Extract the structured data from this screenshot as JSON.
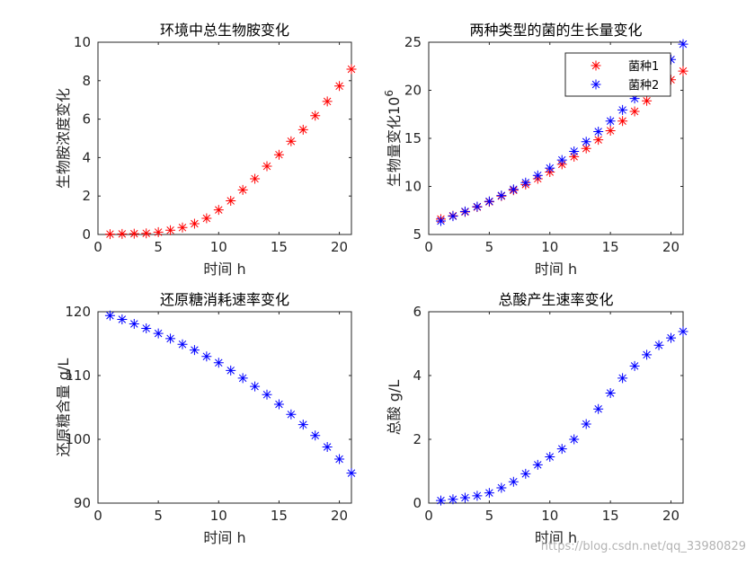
{
  "watermark": "https://blog.csdn.net/qq_33980829",
  "chart_data": [
    {
      "type": "scatter",
      "title": "环境中总生物胺变化",
      "xlabel": "时间 h",
      "ylabel": "生物胺浓度变化",
      "xlim": [
        0,
        21
      ],
      "ylim": [
        0,
        10
      ],
      "xticks": [
        0,
        5,
        10,
        15,
        20
      ],
      "yticks": [
        0,
        2,
        4,
        6,
        8,
        10
      ],
      "series": [
        {
          "name": "生物胺",
          "color": "#ff0000",
          "marker": "*",
          "x": [
            1,
            2,
            3,
            4,
            5,
            6,
            7,
            8,
            9,
            10,
            11,
            12,
            13,
            14,
            15,
            16,
            17,
            18,
            19,
            20,
            21
          ],
          "values": [
            0.02,
            0.03,
            0.04,
            0.06,
            0.12,
            0.22,
            0.36,
            0.56,
            0.84,
            1.28,
            1.75,
            2.32,
            2.9,
            3.55,
            4.15,
            4.85,
            5.45,
            6.18,
            6.92,
            7.72,
            8.6
          ]
        }
      ]
    },
    {
      "type": "scatter",
      "title": "两种类型的菌的生长量变化",
      "xlabel": "时间 h",
      "ylabel": "生物量变化10",
      "ylabel_exponent": "6",
      "xlim": [
        0,
        21
      ],
      "ylim": [
        5,
        25
      ],
      "xticks": [
        0,
        5,
        10,
        15,
        20
      ],
      "yticks": [
        5,
        10,
        15,
        20,
        25
      ],
      "legend": "top-right",
      "series": [
        {
          "name": "菌种1",
          "color": "#ff0000",
          "marker": "*",
          "x": [
            1,
            2,
            3,
            4,
            5,
            6,
            7,
            8,
            9,
            10,
            11,
            12,
            13,
            14,
            15,
            16,
            17,
            18,
            19,
            20,
            21
          ],
          "values": [
            6.6,
            6.95,
            7.35,
            7.85,
            8.4,
            9.0,
            9.6,
            10.2,
            10.8,
            11.5,
            12.3,
            13.1,
            13.95,
            14.85,
            15.8,
            16.8,
            17.8,
            18.9,
            20.0,
            21.1,
            22.0
          ]
        },
        {
          "name": "菌种2",
          "color": "#0000ff",
          "marker": "*",
          "x": [
            1,
            2,
            3,
            4,
            5,
            6,
            7,
            8,
            9,
            10,
            11,
            12,
            13,
            14,
            15,
            16,
            17,
            18,
            19,
            20,
            21
          ],
          "values": [
            6.4,
            6.9,
            7.4,
            7.9,
            8.45,
            9.05,
            9.7,
            10.4,
            11.15,
            11.9,
            12.75,
            13.65,
            14.65,
            15.7,
            16.8,
            17.95,
            19.15,
            20.4,
            21.7,
            23.2,
            24.8
          ]
        }
      ]
    },
    {
      "type": "scatter",
      "title": "还原糖消耗速率变化",
      "xlabel": "时间 h",
      "ylabel": "还原糖含量 g/L",
      "xlim": [
        0,
        21
      ],
      "ylim": [
        90,
        120
      ],
      "xticks": [
        0,
        5,
        10,
        15,
        20
      ],
      "yticks": [
        90,
        100,
        110,
        120
      ],
      "series": [
        {
          "name": "还原糖",
          "color": "#0000ff",
          "marker": "*",
          "x": [
            1,
            2,
            3,
            4,
            5,
            6,
            7,
            8,
            9,
            10,
            11,
            12,
            13,
            14,
            15,
            16,
            17,
            18,
            19,
            20,
            21
          ],
          "values": [
            119.4,
            118.8,
            118.1,
            117.4,
            116.6,
            115.8,
            114.9,
            114.0,
            113.0,
            112.0,
            110.8,
            109.6,
            108.3,
            107.0,
            105.5,
            103.9,
            102.3,
            100.6,
            98.8,
            96.9,
            94.7
          ]
        }
      ]
    },
    {
      "type": "scatter",
      "title": "总酸产生速率变化",
      "xlabel": "时间 h",
      "ylabel": "总酸 g/L",
      "xlim": [
        0,
        21
      ],
      "ylim": [
        0,
        6
      ],
      "xticks": [
        0,
        5,
        10,
        15,
        20
      ],
      "yticks": [
        0,
        2,
        4,
        6
      ],
      "series": [
        {
          "name": "总酸",
          "color": "#0000ff",
          "marker": "*",
          "x": [
            1,
            2,
            3,
            4,
            5,
            6,
            7,
            8,
            9,
            10,
            11,
            12,
            13,
            14,
            15,
            16,
            17,
            18,
            19,
            20,
            21
          ],
          "values": [
            0.08,
            0.12,
            0.17,
            0.23,
            0.32,
            0.48,
            0.67,
            0.92,
            1.2,
            1.45,
            1.7,
            2.0,
            2.48,
            2.95,
            3.45,
            3.92,
            4.3,
            4.65,
            4.95,
            5.18,
            5.38
          ]
        }
      ]
    }
  ]
}
